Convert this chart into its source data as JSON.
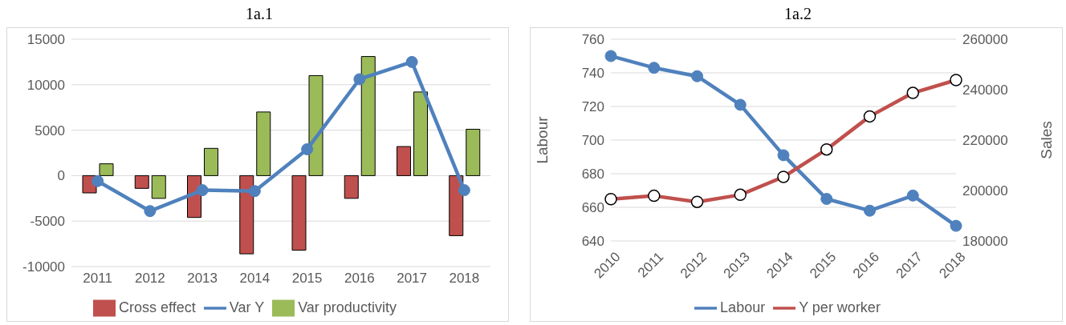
{
  "chart_data": [
    {
      "type": "bar",
      "title": "1a.1",
      "categories": [
        "2011",
        "2012",
        "2013",
        "2014",
        "2015",
        "2016",
        "2017",
        "2018"
      ],
      "series": [
        {
          "name": "Cross effect",
          "color": "#c0504d",
          "values": [
            -1900,
            -1400,
            -4600,
            -8600,
            -8200,
            -2500,
            3200,
            -6600
          ]
        },
        {
          "name": "Var productivity",
          "color": "#9bbb59",
          "values": [
            1300,
            -2500,
            3000,
            7000,
            11000,
            13100,
            9200,
            5100
          ]
        },
        {
          "name": "Var Y",
          "type": "line",
          "color": "#4f81bd",
          "values": [
            -600,
            -3900,
            -1600,
            -1700,
            2900,
            10600,
            12500,
            -1600
          ]
        }
      ],
      "ylim": [
        -10000,
        15000
      ],
      "yticks": [
        -10000,
        -5000,
        0,
        5000,
        10000,
        15000
      ],
      "grid": "y",
      "legend": "bottom",
      "marker": "circle"
    },
    {
      "type": "line",
      "title": "1a.2",
      "ylabel": "Labour",
      "y2label": "Sales",
      "categories": [
        "2010",
        "2011",
        "2012",
        "2013",
        "2014",
        "2015",
        "2016",
        "2017",
        "2018"
      ],
      "series": [
        {
          "name": "Labour",
          "color": "#4f81bd",
          "values": [
            750,
            743,
            738,
            721,
            691,
            665,
            658,
            667,
            649
          ]
        },
        {
          "name": "Y per worker",
          "color": "#c0504d",
          "axis": "y2",
          "values": [
            196600,
            197900,
            195500,
            198300,
            205400,
            216300,
            229400,
            238700,
            243800
          ]
        }
      ],
      "ylim": [
        640,
        760
      ],
      "yticks": [
        640,
        660,
        680,
        700,
        720,
        740,
        760
      ],
      "y2lim": [
        180000,
        260000
      ],
      "y2ticks": [
        180000,
        200000,
        220000,
        240000,
        260000
      ],
      "grid": "y",
      "legend": "bottom",
      "marker": "circle"
    }
  ]
}
